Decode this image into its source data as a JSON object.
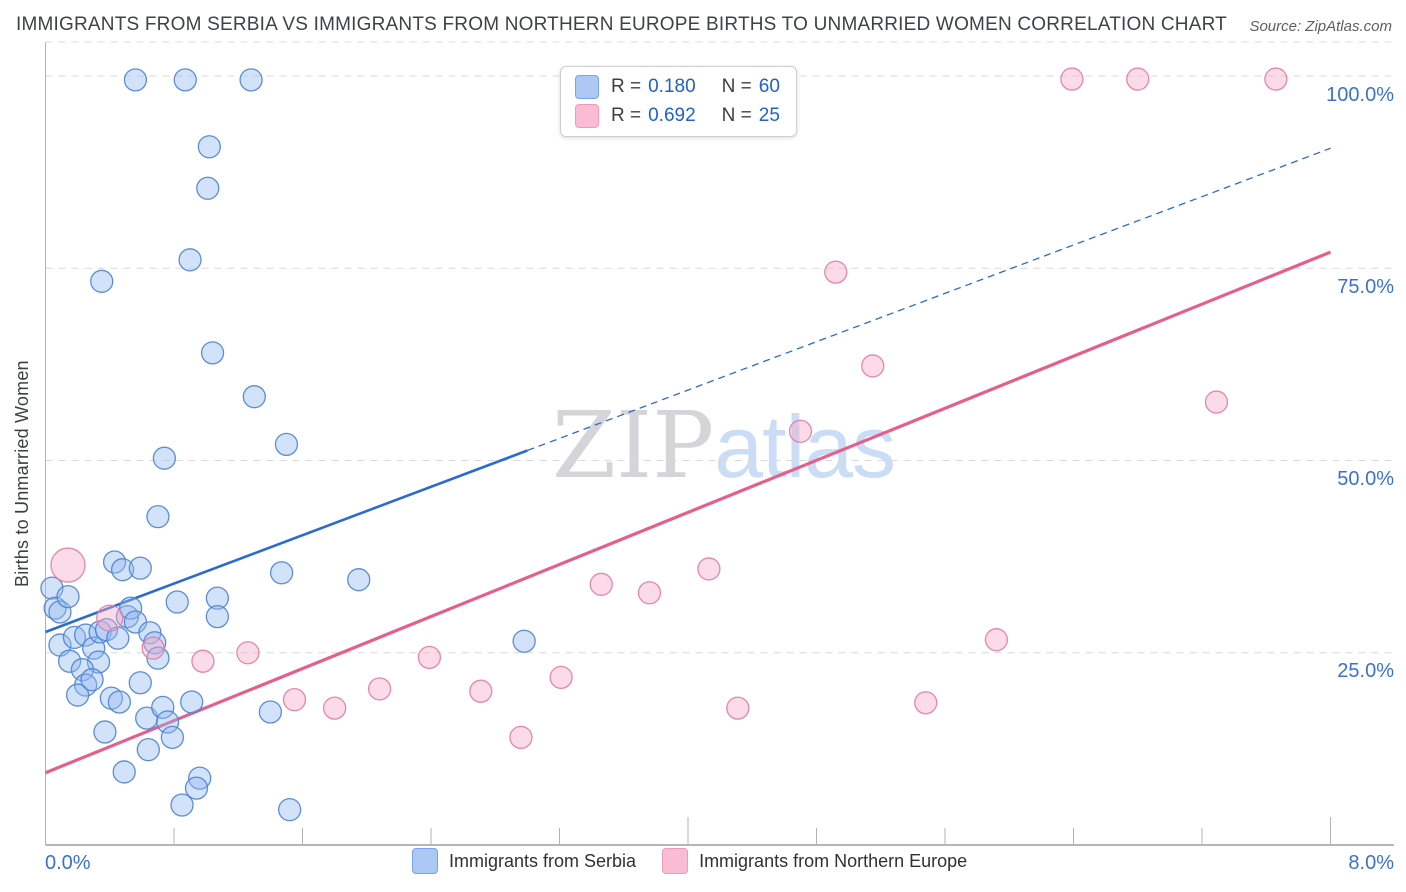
{
  "header": {
    "title": "IMMIGRANTS FROM SERBIA VS IMMIGRANTS FROM NORTHERN EUROPE BIRTHS TO UNMARRIED WOMEN CORRELATION CHART",
    "source": "Source: ZipAtlas.com"
  },
  "watermark": {
    "zip": "ZIP",
    "atlas": "atlas"
  },
  "legend_labels": {
    "r": "R =",
    "n": "N ="
  },
  "chart_data": {
    "type": "scatter",
    "title": "Immigrants from Serbia vs Immigrants from Northern Europe Births to Unmarried Women",
    "y_axis": {
      "title": "Births to Unmarried Women",
      "min": 0,
      "max": 100,
      "unit": "%",
      "tick_values": [
        100,
        75,
        50,
        25
      ],
      "tick_labels": [
        "100.0%",
        "75.0%",
        "50.0%",
        "25.0%"
      ],
      "grid": "dashed",
      "label_side": "right"
    },
    "x_axis": {
      "min": 0,
      "max": 8,
      "unit": "%",
      "tick_interval": 0.8,
      "major_ticks": [
        4.0,
        8.0
      ],
      "labels": [
        "0.0%",
        "8.0%"
      ]
    },
    "legend_position": "top-center",
    "series": [
      {
        "name": "Immigrants from Serbia",
        "r": "0.180",
        "n": "60",
        "color": "#94bbef",
        "stroke": "#4d82d4",
        "points": [
          [
            0.56,
            99.5
          ],
          [
            0.87,
            99.5
          ],
          [
            1.28,
            99.5
          ],
          [
            1.02,
            90.8
          ],
          [
            1.01,
            85.4
          ],
          [
            0.9,
            76.1
          ],
          [
            0.35,
            73.3
          ],
          [
            1.04,
            64.0
          ],
          [
            1.3,
            58.3
          ],
          [
            1.5,
            52.1
          ],
          [
            0.74,
            50.3
          ],
          [
            0.7,
            42.7
          ],
          [
            0.04,
            33.4
          ],
          [
            0.06,
            30.8
          ],
          [
            0.09,
            30.3
          ],
          [
            0.14,
            32.3
          ],
          [
            0.09,
            26.0
          ],
          [
            0.15,
            23.9
          ],
          [
            0.18,
            27.0
          ],
          [
            0.25,
            27.3
          ],
          [
            0.3,
            25.6
          ],
          [
            0.33,
            23.8
          ],
          [
            0.23,
            22.8
          ],
          [
            0.25,
            20.8
          ],
          [
            0.2,
            19.5
          ],
          [
            0.29,
            21.5
          ],
          [
            0.34,
            27.7
          ],
          [
            0.38,
            28.0
          ],
          [
            0.43,
            36.8
          ],
          [
            0.48,
            35.8
          ],
          [
            0.51,
            29.7
          ],
          [
            0.53,
            30.8
          ],
          [
            0.56,
            29.0
          ],
          [
            0.59,
            36.0
          ],
          [
            0.45,
            26.9
          ],
          [
            0.41,
            19.1
          ],
          [
            0.46,
            18.6
          ],
          [
            0.59,
            21.1
          ],
          [
            0.63,
            16.5
          ],
          [
            0.37,
            14.7
          ],
          [
            0.65,
            27.6
          ],
          [
            0.68,
            26.3
          ],
          [
            0.7,
            24.3
          ],
          [
            0.73,
            17.9
          ],
          [
            0.76,
            16.0
          ],
          [
            0.79,
            14.0
          ],
          [
            0.64,
            12.4
          ],
          [
            0.49,
            9.5
          ],
          [
            0.82,
            31.6
          ],
          [
            0.91,
            18.6
          ],
          [
            0.96,
            8.7
          ],
          [
            0.94,
            7.4
          ],
          [
            0.85,
            5.2
          ],
          [
            1.07,
            32.1
          ],
          [
            1.07,
            29.7
          ],
          [
            1.4,
            17.3
          ],
          [
            1.47,
            35.4
          ],
          [
            1.52,
            4.6
          ],
          [
            1.95,
            34.5
          ],
          [
            2.98,
            26.5
          ]
        ]
      },
      {
        "name": "Immigrants from Northern Europe",
        "r": "0.692",
        "n": "25",
        "color": "#f3aac6",
        "stroke": "#e27ba4",
        "points": [
          [
            0.14,
            36.4,
            17
          ],
          [
            0.4,
            29.5,
            13
          ],
          [
            0.67,
            25.6
          ],
          [
            0.98,
            23.9
          ],
          [
            1.26,
            25.0
          ],
          [
            1.55,
            18.9
          ],
          [
            1.8,
            17.8
          ],
          [
            2.08,
            20.3
          ],
          [
            2.39,
            24.4
          ],
          [
            2.71,
            20.0
          ],
          [
            2.96,
            14.0
          ],
          [
            3.21,
            21.8
          ],
          [
            3.46,
            33.9
          ],
          [
            3.76,
            32.8
          ],
          [
            4.13,
            35.9
          ],
          [
            4.31,
            17.8
          ],
          [
            4.7,
            53.8
          ],
          [
            4.92,
            74.5
          ],
          [
            5.15,
            62.3
          ],
          [
            5.48,
            18.5
          ],
          [
            5.92,
            26.7
          ],
          [
            6.39,
            99.6
          ],
          [
            6.8,
            99.6
          ],
          [
            7.29,
            57.6
          ],
          [
            7.66,
            99.6
          ]
        ]
      }
    ],
    "trend_lines": [
      {
        "series": "Immigrants from Serbia",
        "color": "#2a6bcf",
        "style": "solid-then-dashed",
        "start": [
          0,
          27.7
        ],
        "solid_until": [
          3.0,
          51.3
        ],
        "end": [
          8,
          90.6
        ]
      },
      {
        "series": "Immigrants from Northern Europe",
        "color": "#e55f8d",
        "style": "solid",
        "start": [
          0,
          9.4
        ],
        "end": [
          8,
          77.1
        ]
      }
    ]
  }
}
